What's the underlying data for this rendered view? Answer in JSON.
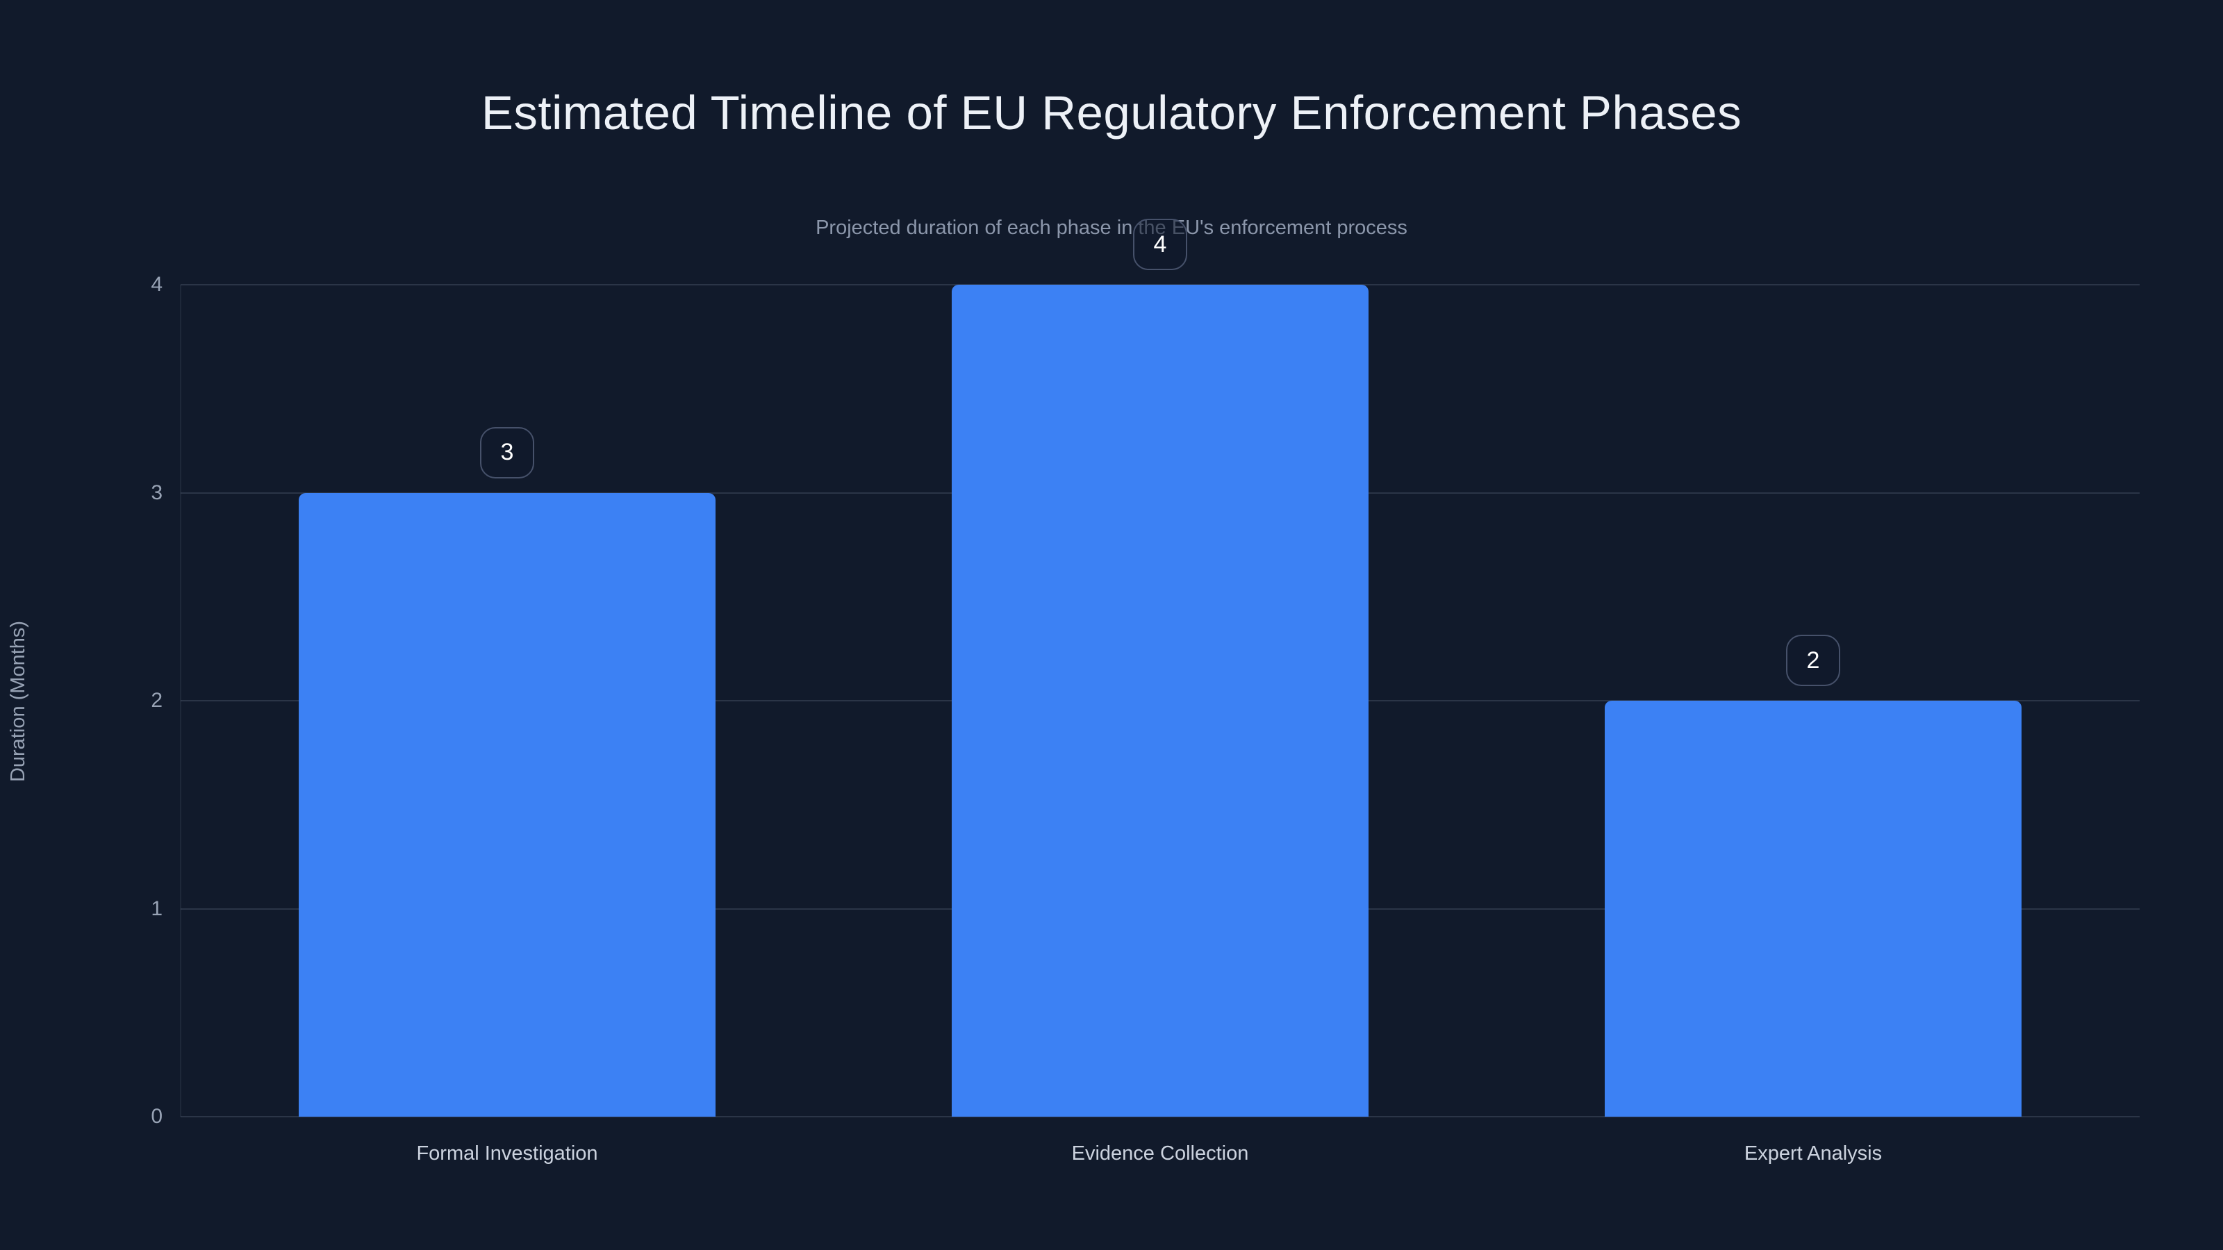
{
  "header": {
    "title": "Estimated Timeline of EU Regulatory Enforcement Phases",
    "subtitle": "Projected duration of each phase in the EU's enforcement process"
  },
  "chart_data": {
    "type": "bar",
    "categories": [
      "Formal Investigation",
      "Evidence Collection",
      "Expert Analysis"
    ],
    "values": [
      3,
      4,
      2
    ],
    "data_labels": [
      "3",
      "4",
      "2"
    ],
    "title": "Estimated Timeline of EU Regulatory Enforcement Phases",
    "subtitle": "Projected duration of each phase in the EU's enforcement process",
    "xlabel": "",
    "ylabel": "Duration (Months)",
    "ylim": [
      0,
      4
    ],
    "yticks": [
      0,
      1,
      2,
      3,
      4
    ],
    "grid": true,
    "legend": false
  },
  "colors": {
    "background": "#111a2b",
    "bar": "#3c81f4",
    "grid": "rgba(148,163,184,0.20)",
    "axis_line": "rgba(148,163,184,0.10)",
    "title_text": "#edf1f7",
    "subtitle_text": "#8c97ab",
    "tick_text": "#98a3b5",
    "category_text": "#ccd3df",
    "badge_border": "#46516a",
    "badge_text": "#ffffff"
  }
}
